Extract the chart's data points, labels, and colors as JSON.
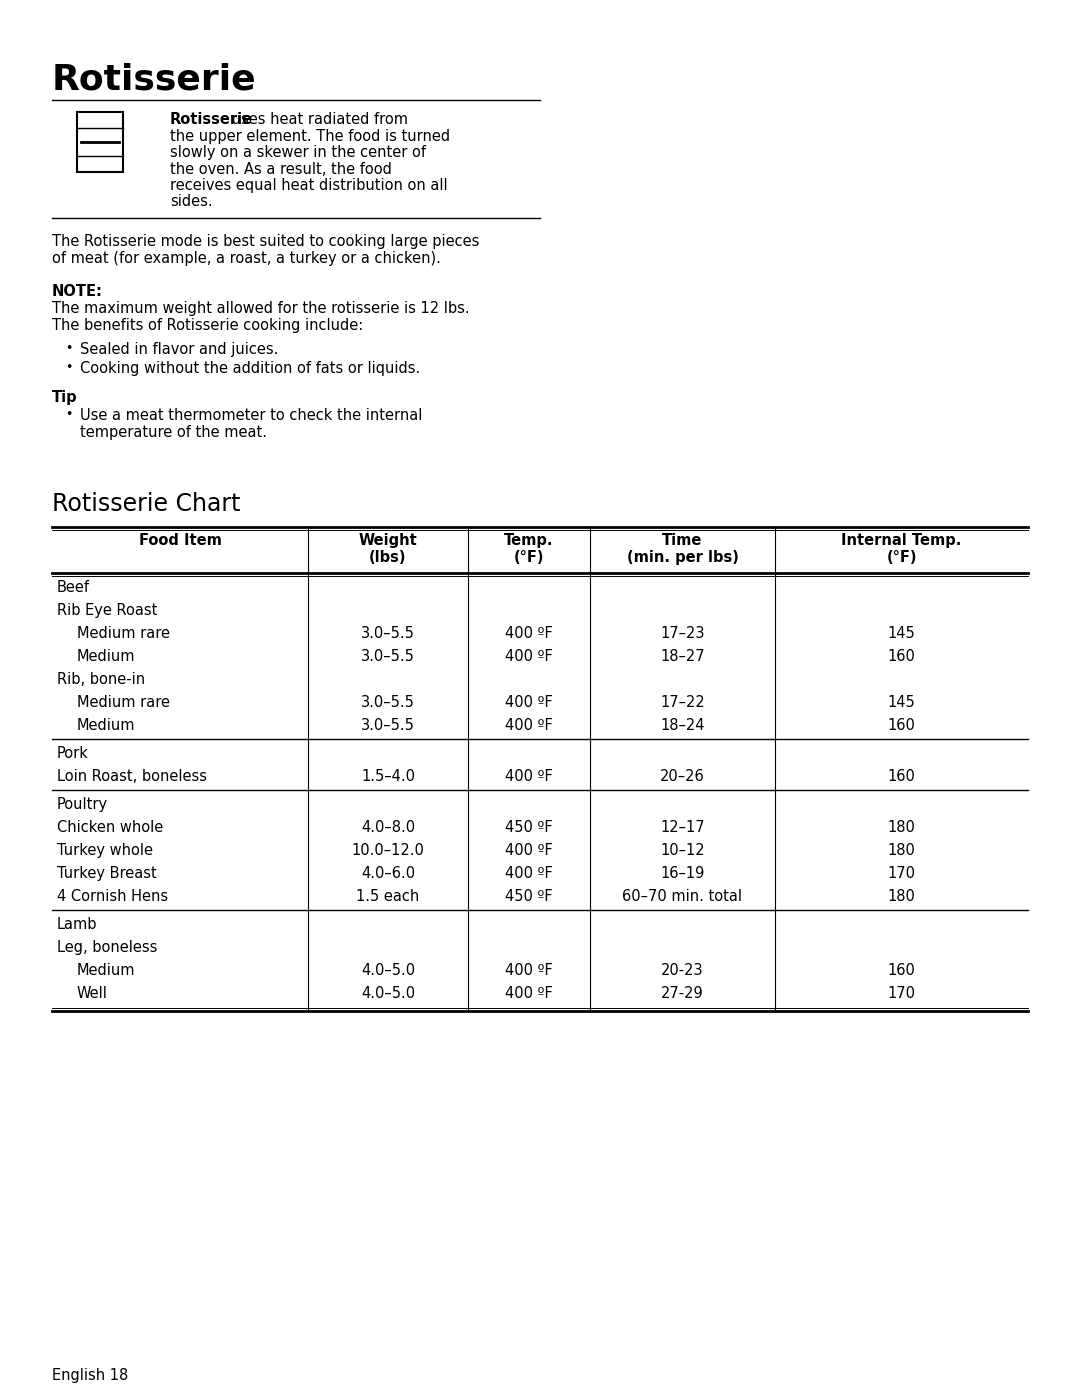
{
  "title": "Rotisserie",
  "chart_title": "Rotisserie Chart",
  "desc_line1_bold": "Rotisserie",
  "desc_line1_rest": " uses heat radiated from",
  "desc_lines": [
    "the upper element. The food is turned",
    "slowly on a skewer in the center of",
    "the oven. As a result, the food",
    "receives equal heat distribution on all",
    "sides."
  ],
  "para1_lines": [
    "The Rotisserie mode is best suited to cooking large pieces",
    "of meat (for example, a roast, a turkey or a chicken)."
  ],
  "note_label": "NOTE:",
  "note_text": "The maximum weight allowed for the rotisserie is 12 lbs.",
  "benefits_intro": "The benefits of Rotisserie cooking include:",
  "benefits": [
    "Sealed in flavor and juices.",
    "Cooking without the addition of fats or liquids."
  ],
  "tip_label": "Tip",
  "tip_lines": [
    "Use a meat thermometer to check the internal",
    "temperature of the meat."
  ],
  "col_headers": [
    "Food Item",
    "Weight\n(lbs)",
    "Temp.\n(°F)",
    "Time\n(min. per lbs)",
    "Internal Temp.\n(°F)"
  ],
  "table_rows": [
    {
      "food": "Beef",
      "weight": "",
      "temp": "",
      "time": "",
      "internal": "",
      "indent": 0,
      "separator": false
    },
    {
      "food": "Rib Eye Roast",
      "weight": "",
      "temp": "",
      "time": "",
      "internal": "",
      "indent": 0,
      "separator": false
    },
    {
      "food": "Medium rare",
      "weight": "3.0–5.5",
      "temp": "400 ºF",
      "time": "17–23",
      "internal": "145",
      "indent": 1,
      "separator": false
    },
    {
      "food": "Medium",
      "weight": "3.0–5.5",
      "temp": "400 ºF",
      "time": "18–27",
      "internal": "160",
      "indent": 1,
      "separator": false
    },
    {
      "food": "Rib, bone-in",
      "weight": "",
      "temp": "",
      "time": "",
      "internal": "",
      "indent": 0,
      "separator": false
    },
    {
      "food": "Medium rare",
      "weight": "3.0–5.5",
      "temp": "400 ºF",
      "time": "17–22",
      "internal": "145",
      "indent": 1,
      "separator": false
    },
    {
      "food": "Medium",
      "weight": "3.0–5.5",
      "temp": "400 ºF",
      "time": "18–24",
      "internal": "160",
      "indent": 1,
      "separator": true
    },
    {
      "food": "Pork",
      "weight": "",
      "temp": "",
      "time": "",
      "internal": "",
      "indent": 0,
      "separator": false
    },
    {
      "food": "Loin Roast, boneless",
      "weight": "1.5–4.0",
      "temp": "400 ºF",
      "time": "20–26",
      "internal": "160",
      "indent": 0,
      "separator": true
    },
    {
      "food": "Poultry",
      "weight": "",
      "temp": "",
      "time": "",
      "internal": "",
      "indent": 0,
      "separator": false
    },
    {
      "food": "Chicken whole",
      "weight": "4.0–8.0",
      "temp": "450 ºF",
      "time": "12–17",
      "internal": "180",
      "indent": 0,
      "separator": false
    },
    {
      "food": "Turkey whole",
      "weight": "10.0–12.0",
      "temp": "400 ºF",
      "time": "10–12",
      "internal": "180",
      "indent": 0,
      "separator": false
    },
    {
      "food": "Turkey Breast",
      "weight": "4.0–6.0",
      "temp": "400 ºF",
      "time": "16–19",
      "internal": "170",
      "indent": 0,
      "separator": false
    },
    {
      "food": "4 Cornish Hens",
      "weight": "1.5 each",
      "temp": "450 ºF",
      "time": "60–70 min. total",
      "internal": "180",
      "indent": 0,
      "separator": true
    },
    {
      "food": "Lamb",
      "weight": "",
      "temp": "",
      "time": "",
      "internal": "",
      "indent": 0,
      "separator": false
    },
    {
      "food": "Leg, boneless",
      "weight": "",
      "temp": "",
      "time": "",
      "internal": "",
      "indent": 0,
      "separator": false
    },
    {
      "food": "Medium",
      "weight": "4.0–5.0",
      "temp": "400 ºF",
      "time": "20-23",
      "internal": "160",
      "indent": 1,
      "separator": false
    },
    {
      "food": "Well",
      "weight": "4.0–5.0",
      "temp": "400 ºF",
      "time": "27-29",
      "internal": "170",
      "indent": 1,
      "separator": false
    }
  ],
  "footer": "English 18",
  "bg_color": "#ffffff",
  "text_color": "#000000"
}
